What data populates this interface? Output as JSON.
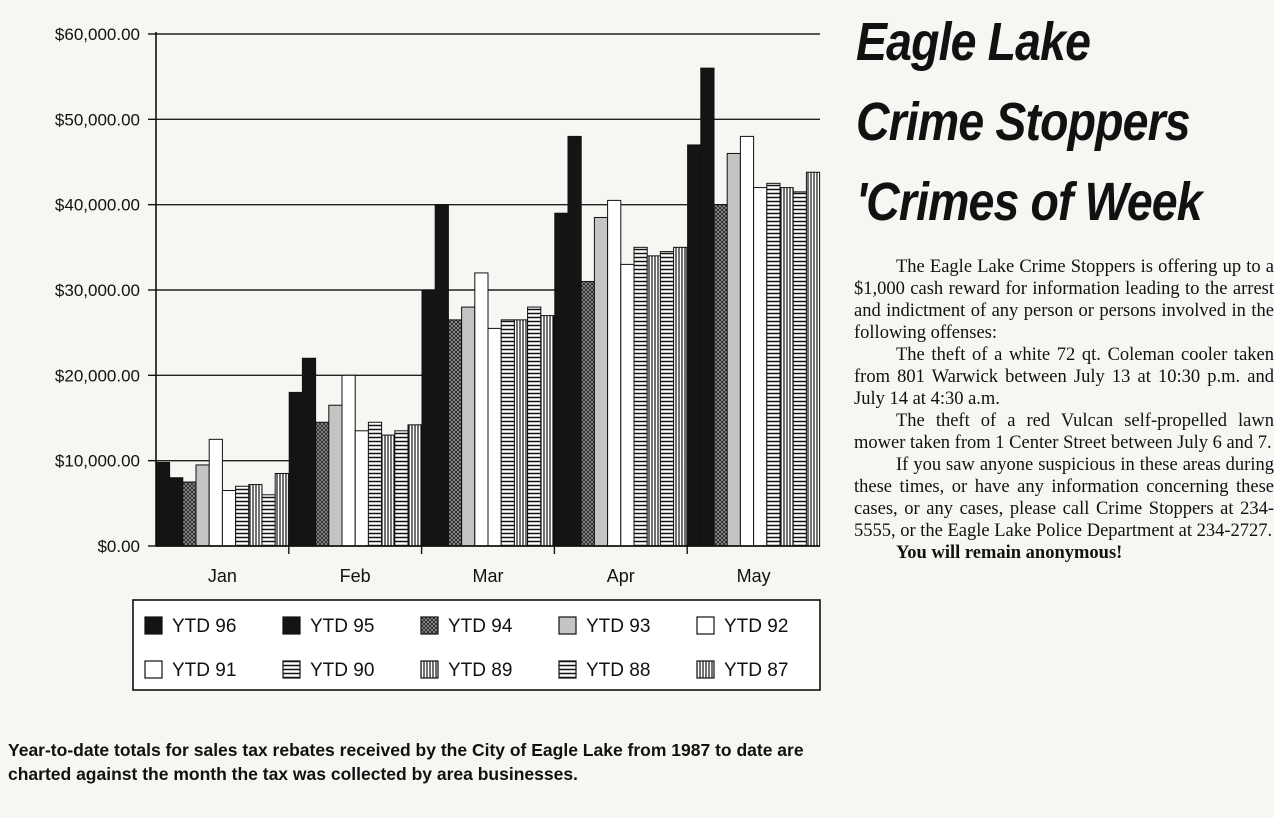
{
  "chart_data": {
    "type": "bar",
    "categories": [
      "Jan",
      "Feb",
      "Mar",
      "Apr",
      "May"
    ],
    "ylim": [
      0,
      60000
    ],
    "yticks": [
      0,
      10000,
      20000,
      30000,
      40000,
      50000,
      60000
    ],
    "ytick_labels": [
      "$0.00",
      "$10,000.00",
      "$20,000.00",
      "$30,000.00",
      "$40,000.00",
      "$50,000.00",
      "$60,000.00"
    ],
    "grid": true,
    "legend_position": "bottom",
    "series": [
      {
        "name": "YTD 96",
        "pattern": "solid-dark",
        "values": [
          9800,
          18000,
          30000,
          39000,
          47000
        ]
      },
      {
        "name": "YTD 95",
        "pattern": "solid-dark",
        "values": [
          8000,
          22000,
          40000,
          48000,
          56000
        ]
      },
      {
        "name": "YTD 94",
        "pattern": "crosshatch",
        "values": [
          7500,
          14500,
          26500,
          31000,
          40000
        ]
      },
      {
        "name": "YTD 93",
        "pattern": "light-gray",
        "values": [
          9500,
          16500,
          28000,
          38500,
          46000
        ]
      },
      {
        "name": "YTD 92",
        "pattern": "white",
        "values": [
          12500,
          20000,
          32000,
          40500,
          48000
        ]
      },
      {
        "name": "YTD 91",
        "pattern": "white",
        "values": [
          6500,
          13500,
          25500,
          33000,
          42000
        ]
      },
      {
        "name": "YTD 90",
        "pattern": "horizontal-lines",
        "values": [
          7000,
          14500,
          26500,
          35000,
          42500
        ]
      },
      {
        "name": "YTD 89",
        "pattern": "vertical-lines",
        "values": [
          7200,
          13000,
          26500,
          34000,
          42000
        ]
      },
      {
        "name": "YTD 88",
        "pattern": "horizontal-lines",
        "values": [
          6000,
          13500,
          28000,
          34500,
          41500
        ]
      },
      {
        "name": "YTD 87",
        "pattern": "vertical-lines",
        "values": [
          8500,
          14200,
          27000,
          35000,
          43800
        ]
      }
    ]
  },
  "caption": "Year-to-date totals for sales tax rebates received by the City of Eagle Lake from 1987 to date are charted against the month the tax was collected by area businesses.",
  "article": {
    "headline": [
      "Eagle Lake",
      "Crime Stoppers",
      "'Crimes of Week"
    ],
    "paragraphs": [
      "The Eagle Lake Crime Stoppers is offering up to a $1,000 cash reward for information leading to the arrest and indictment of any person or persons involved in the following offenses:",
      "The theft of a white 72 qt. Coleman cooler taken from 801 Warwick between July 13 at 10:30 p.m. and July 14 at 4:30 a.m.",
      "The theft of a red Vulcan self-propelled lawn mower taken from 1 Center Street between July 6 and 7.",
      "If you saw anyone suspicious in these areas during these times, or have any information concerning these cases, or any cases, please call Crime Stoppers at 234-5555, or the Eagle Lake Police Department at 234-2727.",
      "You will remain anonymous!"
    ]
  }
}
